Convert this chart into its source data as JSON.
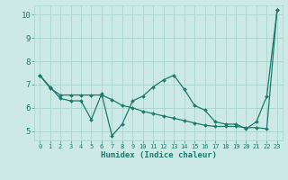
{
  "xlabel": "Humidex (Indice chaleur)",
  "x": [
    0,
    1,
    2,
    3,
    4,
    5,
    6,
    7,
    8,
    9,
    10,
    11,
    12,
    13,
    14,
    15,
    16,
    17,
    18,
    19,
    20,
    21,
    22,
    23
  ],
  "line1_y": [
    7.4,
    6.9,
    6.4,
    6.3,
    6.3,
    5.5,
    6.6,
    4.8,
    5.3,
    6.3,
    6.5,
    6.9,
    7.2,
    7.4,
    6.8,
    6.1,
    5.9,
    5.4,
    5.3,
    5.3,
    5.1,
    5.4,
    6.5,
    10.2
  ],
  "line2_y": [
    7.4,
    6.85,
    6.55,
    6.55,
    6.55,
    6.55,
    6.55,
    6.35,
    6.1,
    6.0,
    5.85,
    5.75,
    5.65,
    5.55,
    5.45,
    5.35,
    5.25,
    5.2,
    5.2,
    5.2,
    5.15,
    5.15,
    5.1,
    10.2
  ],
  "line_color": "#1a7a6e",
  "bg_color": "#cce9e5",
  "grid_color": "#aad4cf",
  "ylim": [
    4.6,
    10.4
  ],
  "xlim": [
    -0.5,
    23.5
  ],
  "yticks": [
    5,
    6,
    7,
    8,
    9,
    10
  ],
  "xtick_labels": [
    "0",
    "1",
    "2",
    "3",
    "4",
    "5",
    "6",
    "7",
    "8",
    "9",
    "10",
    "11",
    "12",
    "13",
    "14",
    "15",
    "16",
    "17",
    "18",
    "19",
    "20",
    "21",
    "22",
    "23"
  ]
}
